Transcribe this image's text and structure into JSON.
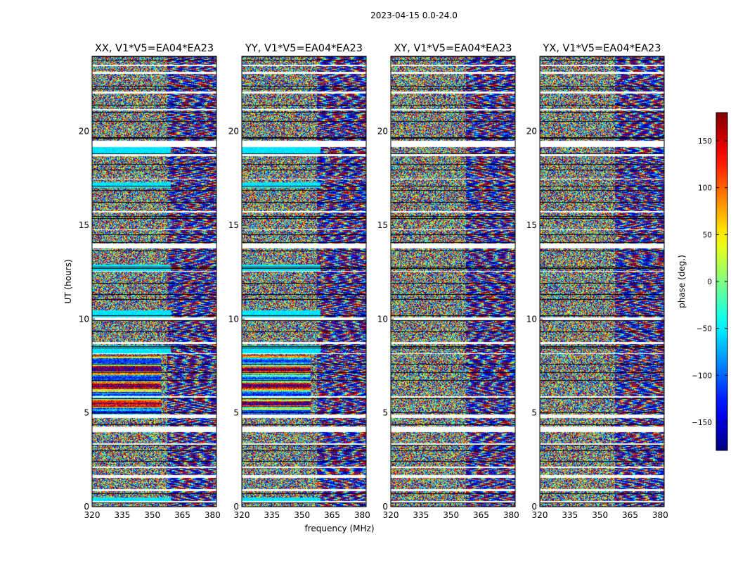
{
  "figure": {
    "suptitle": "2023-04-15 0.0-24.0",
    "xlabel": "frequency (MHz)",
    "ylabel": "UT (hours)"
  },
  "colorbar": {
    "label": "phase (deg.)",
    "range": [
      -180,
      180
    ],
    "ticks": [
      -150,
      -100,
      -50,
      0,
      50,
      100,
      150
    ],
    "colormap": "jet",
    "colors": [
      "#00007f",
      "#0000ff",
      "#007fff",
      "#00ffff",
      "#7fff7f",
      "#ffff00",
      "#ff7f00",
      "#ff0000",
      "#7f0000"
    ]
  },
  "chart_data": {
    "type": "heatmap",
    "description_value": "phase (deg.)",
    "x_axis": {
      "label": "frequency (MHz)",
      "range": [
        320,
        382
      ],
      "ticks": [
        320,
        335,
        350,
        365,
        380
      ]
    },
    "y_axis": {
      "label": "UT (hours)",
      "range": [
        0,
        24
      ],
      "ticks": [
        0,
        5,
        10,
        15,
        20
      ]
    },
    "z_range": [
      -180,
      180
    ],
    "panels": [
      {
        "title": "XX, V1*V5=EA04*EA23"
      },
      {
        "title": "YY, V1*V5=EA04*EA23"
      },
      {
        "title": "XY, V1*V5=EA04*EA23"
      },
      {
        "title": "YX, V1*V5=EA04*EA23"
      }
    ],
    "flagged_time_ranges_hours": [
      [
        0.25,
        0.3
      ],
      [
        0.85,
        0.95
      ],
      [
        1.55,
        1.7
      ],
      [
        2.1,
        2.15
      ],
      [
        3.3,
        3.4
      ],
      [
        4.0,
        4.3
      ],
      [
        4.75,
        4.95
      ],
      [
        5.85,
        5.9
      ],
      [
        8.15,
        8.2
      ],
      [
        8.7,
        8.8
      ],
      [
        9.95,
        10.1
      ],
      [
        12.55,
        12.6
      ],
      [
        13.8,
        14.05
      ],
      [
        14.75,
        14.8
      ],
      [
        15.7,
        15.75
      ],
      [
        17.45,
        17.5
      ],
      [
        18.7,
        18.8
      ],
      [
        19.2,
        19.5
      ],
      [
        21.15,
        21.2
      ],
      [
        22.05,
        22.15
      ],
      [
        23.1,
        23.2
      ],
      [
        23.5,
        23.55
      ]
    ]
  }
}
